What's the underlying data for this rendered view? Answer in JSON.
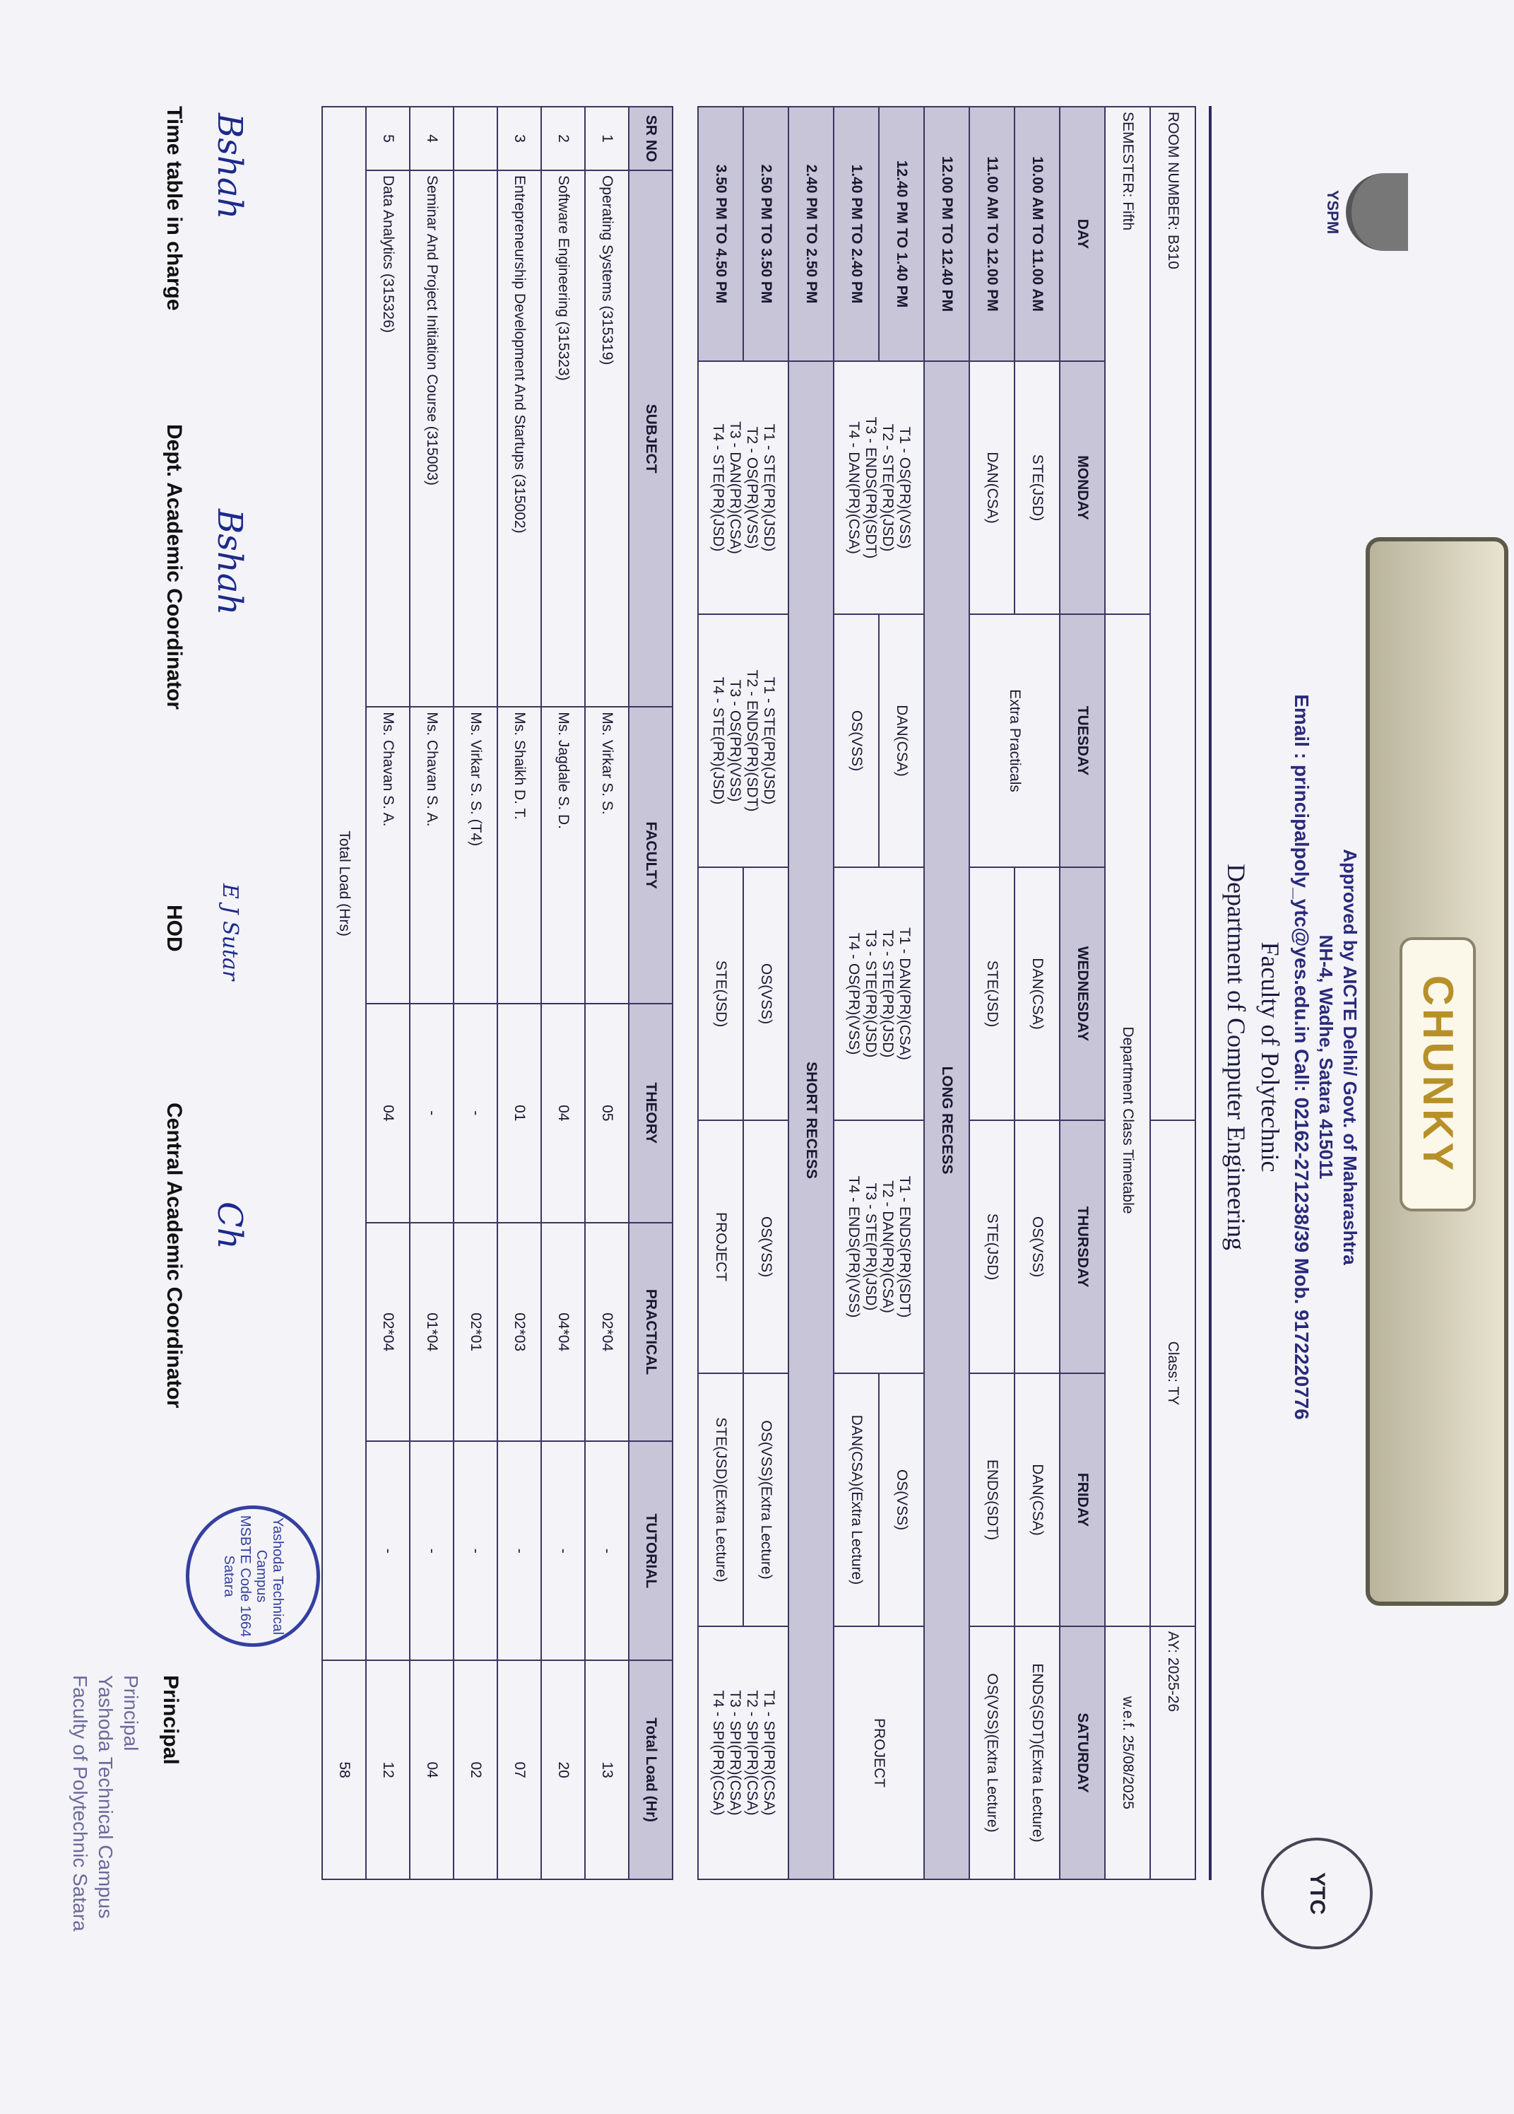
{
  "binder_label": "CHUNKY",
  "header": {
    "logo_left": "YSPM",
    "approved": "Approved by AICTE Delhi/ Govt. of Maharashtra",
    "address": "NH-4, Wadhe, Satara 415011",
    "contact": "Email : principalpoly_ytc@yes.edu.in Call: 02162-271238/39 Mob. 9172220776",
    "faculty": "Faculty of Polytechnic",
    "department": "Department of Computer Engineering"
  },
  "info": {
    "room": "ROOM NUMBER: B310",
    "class": "Class: TY",
    "ay": "AY: 2025-26",
    "semester": "SEMESTER: Fifth",
    "title": "Department Class Timetable",
    "wef": "w.e.f. 25/08/2025"
  },
  "days": [
    "DAY",
    "MONDAY",
    "TUESDAY",
    "WEDNESDAY",
    "THURSDAY",
    "FRIDAY",
    "SATURDAY"
  ],
  "slots": {
    "s1": "10.00 AM TO 11.00 AM",
    "s2": "11.00 AM TO 12.00 PM",
    "s3": "12.00 PM TO 12.40 PM",
    "s4": "12.40 PM TO 1.40 PM",
    "s5": "1.40 PM TO 2.40 PM",
    "s6": "2.40 PM TO 2.50 PM",
    "s7": "2.50 PM TO 3.50 PM",
    "s8": "3.50 PM TO 4.50 PM"
  },
  "cells": {
    "mon1": "STE(JSD)",
    "tue12": "Extra Practicals",
    "wed1": "DAN(CSA)",
    "thu1": "OS(VSS)",
    "fri1": "DAN(CSA)",
    "sat1": "ENDS(SDT)(Extra Lecture)",
    "mon2": "DAN(CSA)",
    "wed2": "STE(JSD)",
    "thu2": "STE(JSD)",
    "fri2": "ENDS(SDT)",
    "sat2": "OS(VSS)(Extra Lecture)",
    "long_recess": "LONG RECESS",
    "mon45": [
      "T1 - OS(PR)(VSS)",
      "T2 - STE(PR)(JSD)",
      "T3 - ENDS(PR)(SDT)",
      "T4 - DAN(PR)(CSA)"
    ],
    "tue4": "DAN(CSA)",
    "wed45": [
      "T1 - DAN(PR)(CSA)",
      "T2 - STE(PR)(JSD)",
      "T3 - STE(PR)(JSD)",
      "T4 - OS(PR)(VSS)"
    ],
    "thu45": [
      "T1 - ENDS(PR)(SDT)",
      "T2 - DAN(PR)(CSA)",
      "T3 - STE(PR)(JSD)",
      "T4 - ENDS(PR)(VSS)"
    ],
    "fri4": "OS(VSS)",
    "sat45": "PROJECT",
    "tue5": "OS(VSS)",
    "fri5": "DAN(CSA)(Extra Lecture)",
    "short_recess": "SHORT RECESS",
    "mon78": [
      "T1 - STE(PR)(JSD)",
      "T2 - OS(PR)(VSS)",
      "T3 - DAN(PR)(CSA)",
      "T4 - STE(PR)(JSD)"
    ],
    "tue78": [
      "T1 - STE(PR)(JSD)",
      "T2 - ENDS(PR)(SDT)",
      "T3 - OS(PR)(VSS)",
      "T4 - STE(PR)(JSD)"
    ],
    "wed7": "OS(VSS)",
    "thu7": "OS(VSS)",
    "fri7": "OS(VSS)(Extra Lecture)",
    "sat78": [
      "T1 - SPI(PR)(CSA)",
      "T2 - SPI(PR)(CSA)",
      "T3 - SPI(PR)(CSA)",
      "T4 - SPI(PR)(CSA)"
    ],
    "wed8": "STE(JSD)",
    "thu8": "PROJECT",
    "fri8": "STE(JSD)(Extra Lecture)"
  },
  "load": {
    "headers": [
      "SR NO",
      "SUBJECT",
      "FACULTY",
      "THEORY",
      "PRACTICAL",
      "TUTORIAL",
      "Total Load (Hr)"
    ],
    "rows": [
      [
        "1",
        "Operating Systems (315319)",
        "Ms. Virkar S. S.",
        "05",
        "02*04",
        "-",
        "13"
      ],
      [
        "2",
        "Software Engineering (315323)",
        "Ms. Jagdale S. D.",
        "04",
        "04*04",
        "-",
        "20"
      ],
      [
        "3",
        "Entrepreneurship Development And Startups (315002)",
        "Ms. Shaikh D. T.",
        "01",
        "02*03",
        "-",
        "07"
      ],
      [
        "",
        "",
        "Ms. Virkar S. S. (T4)",
        "-",
        "02*01",
        "-",
        "02"
      ],
      [
        "4",
        "Seminar And Project Initiation Course (315003)",
        "Ms. Chavan S. A.",
        "-",
        "01*04",
        "-",
        "04"
      ],
      [
        "5",
        "Data Analytics (315326)",
        "Ms. Chavan S. A.",
        "04",
        "02*04",
        "-",
        "12"
      ]
    ],
    "total_label": "Total Load (Hrs)",
    "total": "58"
  },
  "signatures": {
    "tt": "Time table in charge",
    "dac": "Dept. Academic Coordinator",
    "hod": "HOD",
    "cac": "Central Academic Coordinator",
    "principal": "Principal",
    "sign1": "Bshah",
    "sign2": "Bshah",
    "sign3": "E J Sutar",
    "sign4": "Ch"
  },
  "stamp": [
    "Yashoda Technical Campus",
    "MSBTE Code 1664",
    "Satara"
  ],
  "footer": [
    "Principal",
    "Yashoda Technical Campus",
    "Faculty of Polytechnic Satara"
  ]
}
